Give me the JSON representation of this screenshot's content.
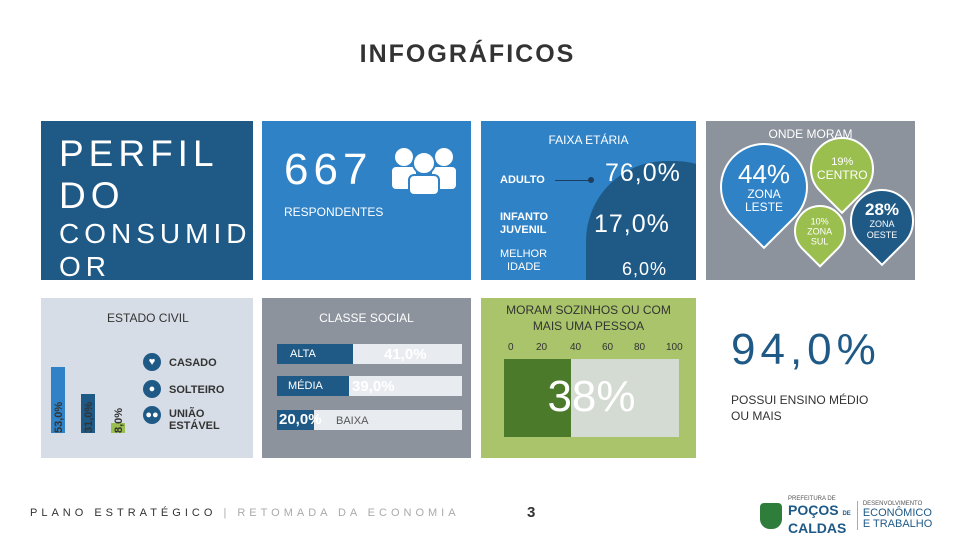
{
  "title": "INFOGRÁFICOS",
  "perfil": {
    "line1": "PERFIL",
    "line2": "DO",
    "line3": "CONSUMID",
    "line4": "OR"
  },
  "respondentes": {
    "count": "667",
    "label": "RESPONDENTES",
    "icon": "people-icon"
  },
  "faixa_etaria": {
    "title": "FAIXA ETÁRIA",
    "items": [
      {
        "label": "ADULTO",
        "value": "76,0%"
      },
      {
        "label1": "INFANTO",
        "label2": "JUVENIL",
        "value": "17,0%"
      },
      {
        "label1": "MELHOR",
        "label2": "IDADE",
        "value": "6,0%"
      }
    ]
  },
  "onde_moram": {
    "title": "ONDE MORAM",
    "leste": {
      "value": "44%",
      "label1": "ZONA",
      "label2": "LESTE",
      "color": "#2f82c6"
    },
    "centro": {
      "value": "19%",
      "label": "CENTRO",
      "color": "#9bbf4f"
    },
    "sul": {
      "value": "10%",
      "label1": "ZONA",
      "label2": "SUL",
      "color": "#9bbf4f"
    },
    "oeste": {
      "value": "28%",
      "label1": "ZONA",
      "label2": "OESTE",
      "color": "#1f5a87"
    }
  },
  "estado_civil": {
    "title": "ESTADO CIVIL",
    "bars": [
      {
        "value": "53,0%",
        "fraction": 0.53,
        "color": "#2f82c6"
      },
      {
        "value": "31,0%",
        "fraction": 0.31,
        "color": "#1f5a87"
      },
      {
        "value": "8,0%",
        "fraction": 0.08,
        "color": "#9bbf4f"
      }
    ],
    "items": [
      {
        "label": "CASADO",
        "icon": "heart-icon"
      },
      {
        "label": "SOLTEIRO",
        "icon": "person-icon"
      },
      {
        "label1": "UNIÃO",
        "label2": "ESTÁVEL",
        "icon": "couple-icon"
      }
    ]
  },
  "classe_social": {
    "title": "CLASSE SOCIAL",
    "rows": [
      {
        "label": "ALTA",
        "value": "41,0%",
        "fraction": 0.41
      },
      {
        "label": "MÉDIA",
        "value": "39,0%",
        "fraction": 0.39
      },
      {
        "label": "BAIXA",
        "value": "20,0%",
        "fraction": 0.2
      }
    ]
  },
  "sozinhos": {
    "title": "MORAM SOZINHOS OU COM MAIS UMA PESSOA",
    "ticks": [
      "0",
      "20",
      "40",
      "60",
      "80",
      "100"
    ],
    "value": "38%",
    "fraction": 0.38
  },
  "ensino": {
    "value": "94,0%",
    "label": "POSSUI ENSINO MÉDIO OU MAIS"
  },
  "footer": {
    "left": "PLANO ESTRATÉGICO",
    "sep": "|",
    "right": "RETOMADA DA ECONOMIA",
    "page": "3"
  },
  "logo": {
    "top": "PREFEITURA DE",
    "city1": "POÇOS",
    "de": "DE",
    "city2": "CALDAS",
    "r1": "DESENVOLVIMENTO",
    "r2": "ECONÔMICO",
    "r3": "E TRABALHO"
  }
}
